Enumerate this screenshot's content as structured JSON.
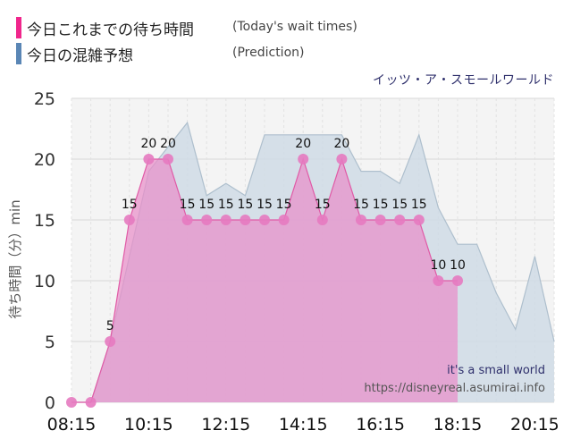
{
  "legend": {
    "today": {
      "label": "今日これまでの待ち時間",
      "sub": "(Today's wait times)",
      "color": "#f0268c"
    },
    "prediction": {
      "label": "今日の混雑予想",
      "sub": "(Prediction)",
      "color": "#5a86b5"
    }
  },
  "attraction_name": "イッツ・ア・スモールワールド",
  "watermark": {
    "name": "it's a small world",
    "url": "https://disneyreal.asumirai.info"
  },
  "chart_data": {
    "type": "area",
    "ylabel": "待ち時間（分）min",
    "ylim": [
      0,
      25
    ],
    "yticks": [
      0,
      5,
      10,
      15,
      20,
      25
    ],
    "x_range": [
      "08:15",
      "20:45"
    ],
    "xticks": [
      "08:15",
      "10:15",
      "12:15",
      "14:15",
      "16:15",
      "18:15",
      "20:15"
    ],
    "grid": true,
    "series": [
      {
        "name": "今日これまでの待ち時間",
        "color": "#e85aa8",
        "points": [
          {
            "x": "08:15",
            "y": 0
          },
          {
            "x": "08:45",
            "y": 0
          },
          {
            "x": "09:15",
            "y": 5
          },
          {
            "x": "09:45",
            "y": 15
          },
          {
            "x": "10:15",
            "y": 20
          },
          {
            "x": "10:45",
            "y": 20
          },
          {
            "x": "11:15",
            "y": 15
          },
          {
            "x": "11:45",
            "y": 15
          },
          {
            "x": "12:15",
            "y": 15
          },
          {
            "x": "12:45",
            "y": 15
          },
          {
            "x": "13:15",
            "y": 15
          },
          {
            "x": "13:45",
            "y": 15
          },
          {
            "x": "14:15",
            "y": 20
          },
          {
            "x": "14:45",
            "y": 15
          },
          {
            "x": "15:15",
            "y": 20
          },
          {
            "x": "15:45",
            "y": 15
          },
          {
            "x": "16:15",
            "y": 15
          },
          {
            "x": "16:45",
            "y": 15
          },
          {
            "x": "17:15",
            "y": 15
          },
          {
            "x": "17:45",
            "y": 10
          },
          {
            "x": "18:15",
            "y": 10
          }
        ]
      },
      {
        "name": "今日の混雑予想",
        "color": "#5a86b5",
        "points": [
          {
            "x": "08:15",
            "y": 0
          },
          {
            "x": "08:45",
            "y": 0
          },
          {
            "x": "09:15",
            "y": 5
          },
          {
            "x": "09:45",
            "y": 12
          },
          {
            "x": "10:15",
            "y": 19
          },
          {
            "x": "10:45",
            "y": 21
          },
          {
            "x": "11:15",
            "y": 23
          },
          {
            "x": "11:45",
            "y": 17
          },
          {
            "x": "12:15",
            "y": 18
          },
          {
            "x": "12:45",
            "y": 17
          },
          {
            "x": "13:15",
            "y": 22
          },
          {
            "x": "13:45",
            "y": 22
          },
          {
            "x": "14:15",
            "y": 22
          },
          {
            "x": "14:45",
            "y": 22
          },
          {
            "x": "15:15",
            "y": 22
          },
          {
            "x": "15:45",
            "y": 19
          },
          {
            "x": "16:15",
            "y": 19
          },
          {
            "x": "16:45",
            "y": 18
          },
          {
            "x": "17:15",
            "y": 22
          },
          {
            "x": "17:45",
            "y": 16
          },
          {
            "x": "18:15",
            "y": 13
          },
          {
            "x": "18:45",
            "y": 13
          },
          {
            "x": "19:15",
            "y": 9
          },
          {
            "x": "19:45",
            "y": 6
          },
          {
            "x": "20:15",
            "y": 12
          },
          {
            "x": "20:45",
            "y": 5
          }
        ]
      }
    ]
  }
}
